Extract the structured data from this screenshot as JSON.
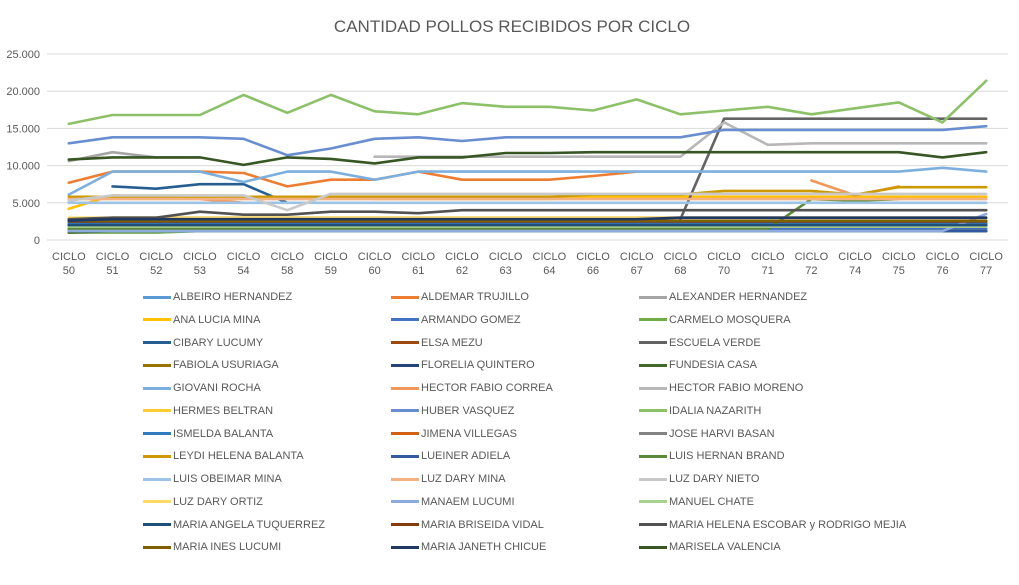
{
  "chart_data": {
    "type": "line",
    "title": "CANTIDAD POLLOS RECIBIDOS POR CICLO",
    "xlabel": "",
    "ylabel": "",
    "ylim": [
      0,
      25000
    ],
    "y_ticks": [
      "0",
      "5.000",
      "10.000",
      "15.000",
      "20.000",
      "25.000"
    ],
    "grid": true,
    "legend_position": "bottom",
    "categories": [
      "CICLO 50",
      "CICLO 51",
      "CICLO 52",
      "CICLO 53",
      "CICLO 54",
      "CICLO 58",
      "CICLO 59",
      "CICLO 60",
      "CICLO 61",
      "CICLO 62",
      "CICLO 63",
      "CICLO 64",
      "CICLO 66",
      "CICLO 67",
      "CICLO 68",
      "CICLO 70",
      "CICLO 71",
      "CICLO 72",
      "CICLO 74",
      "CICLO 75",
      "CICLO 76",
      "CICLO 77"
    ],
    "series": [
      {
        "name": "ALBEIRO HERNANDEZ",
        "color": "#5b9bd5",
        "values": [
          2000,
          2000,
          2000,
          2000,
          2000,
          2000,
          2000,
          2000,
          2000,
          2000,
          2000,
          2000,
          2000,
          2000,
          2000,
          2000,
          2000,
          2000,
          2000,
          2000,
          2000,
          2000
        ]
      },
      {
        "name": "ALDEMAR TRUJILLO",
        "color": "#ed7d31",
        "values": [
          7700,
          9200,
          9200,
          9200,
          9000,
          7200,
          8100,
          8100,
          9200,
          8100,
          8100,
          8100,
          8600,
          9200,
          null,
          null,
          null,
          null,
          null,
          null,
          9200,
          null
        ]
      },
      {
        "name": "ALEXANDER HERNANDEZ",
        "color": "#a5a5a5",
        "values": [
          10600,
          11800,
          11100,
          11100,
          null,
          null,
          null,
          null,
          null,
          null,
          null,
          null,
          null,
          null,
          null,
          null,
          null,
          null,
          null,
          null,
          null,
          null
        ]
      },
      {
        "name": "ANA LUCIA MINA",
        "color": "#ffc000",
        "values": [
          4200,
          6000,
          5800,
          6000,
          5800,
          5800,
          5800,
          5800,
          5800,
          5800,
          5800,
          5800,
          5800,
          5800,
          5800,
          5800,
          5800,
          5800,
          5800,
          5800,
          5800,
          5800
        ]
      },
      {
        "name": "ARMANDO GOMEZ",
        "color": "#4472c4",
        "values": [
          1500,
          1500,
          1500,
          1500,
          1500,
          1500,
          1500,
          1500,
          1500,
          1500,
          1500,
          1500,
          1500,
          1500,
          1500,
          1500,
          1500,
          1500,
          1500,
          1500,
          1500,
          1500
        ]
      },
      {
        "name": "CARMELO MOSQUERA",
        "color": "#70ad47",
        "values": [
          1000,
          1000,
          1000,
          1200,
          1200,
          1200,
          1200,
          1200,
          1200,
          1200,
          1200,
          1200,
          1200,
          1200,
          1200,
          1200,
          1200,
          1200,
          1200,
          1200,
          1200,
          1200
        ]
      },
      {
        "name": "CIBARY LUCUMY",
        "color": "#255e91",
        "values": [
          null,
          7200,
          6900,
          7500,
          7500,
          5000,
          null,
          null,
          null,
          null,
          null,
          null,
          null,
          null,
          null,
          null,
          null,
          null,
          null,
          null,
          null,
          null
        ]
      },
      {
        "name": "ELSA MEZU",
        "color": "#9e480e",
        "values": [
          2500,
          2500,
          2500,
          2500,
          2500,
          2500,
          2500,
          2500,
          2500,
          2500,
          2500,
          2500,
          2500,
          2500,
          2500,
          2500,
          2500,
          2500,
          2500,
          2500,
          2500,
          2500
        ]
      },
      {
        "name": "ESCUELA VERDE",
        "color": "#636363",
        "values": [
          null,
          null,
          null,
          null,
          null,
          null,
          null,
          null,
          null,
          null,
          null,
          null,
          null,
          null,
          2800,
          16300,
          16300,
          16300,
          16300,
          16300,
          16300,
          16300
        ]
      },
      {
        "name": "FABIOLA USURIAGA",
        "color": "#997300",
        "values": [
          2800,
          3000,
          3000,
          3000,
          3000,
          3000,
          3000,
          3000,
          3000,
          3000,
          3000,
          3000,
          3000,
          3000,
          3000,
          3000,
          3000,
          3000,
          3000,
          3000,
          3000,
          3000
        ]
      },
      {
        "name": "FLORELIA QUINTERO",
        "color": "#264478",
        "values": [
          2000,
          2200,
          2200,
          2200,
          2200,
          2200,
          2200,
          2200,
          2200,
          2200,
          2200,
          2200,
          2200,
          2200,
          2200,
          2200,
          2200,
          2200,
          2200,
          2200,
          2200,
          2200
        ]
      },
      {
        "name": "FUNDESIA CASA",
        "color": "#43682b",
        "values": [
          1000,
          1200,
          1200,
          1200,
          1200,
          1200,
          1200,
          1200,
          1200,
          1200,
          1200,
          1200,
          1200,
          1200,
          1200,
          1200,
          1200,
          1200,
          1200,
          1200,
          1200,
          1200
        ]
      },
      {
        "name": "GIOVANI ROCHA",
        "color": "#7cafdd",
        "values": [
          6100,
          9200,
          9200,
          9200,
          7800,
          9200,
          9200,
          8100,
          9200,
          9200,
          9200,
          9200,
          9200,
          9200,
          9200,
          9200,
          9200,
          9200,
          9200,
          9200,
          9700,
          9200
        ]
      },
      {
        "name": "HECTOR FABIO CORREA",
        "color": "#f1975a",
        "values": [
          null,
          null,
          null,
          5500,
          5000,
          null,
          5500,
          null,
          null,
          null,
          null,
          null,
          null,
          null,
          null,
          null,
          null,
          8000,
          6000,
          7200,
          null,
          null
        ]
      },
      {
        "name": "HECTOR FABIO MORENO",
        "color": "#b7b7b7",
        "values": [
          null,
          null,
          null,
          null,
          null,
          null,
          null,
          11200,
          11200,
          11200,
          11200,
          11200,
          11200,
          11200,
          11200,
          15800,
          12800,
          13000,
          13000,
          13000,
          13000,
          13000
        ]
      },
      {
        "name": "HERMES BELTRAN",
        "color": "#ffcd33",
        "values": [
          null,
          null,
          null,
          null,
          null,
          null,
          null,
          5500,
          5500,
          5500,
          5500,
          5500,
          null,
          null,
          null,
          null,
          null,
          null,
          null,
          null,
          null,
          null
        ]
      },
      {
        "name": "HUBER VASQUEZ",
        "color": "#698ed0",
        "values": [
          13000,
          13800,
          13800,
          13800,
          13600,
          11400,
          12300,
          13600,
          13800,
          13300,
          13800,
          13800,
          13800,
          13800,
          13800,
          14800,
          14800,
          14800,
          14800,
          14800,
          14800,
          15300
        ]
      },
      {
        "name": "IDALIA NAZARITH",
        "color": "#8cc168",
        "values": [
          15600,
          16800,
          16800,
          16800,
          19500,
          17100,
          19500,
          17300,
          16900,
          18400,
          17900,
          17900,
          17400,
          18900,
          16900,
          17400,
          17900,
          16900,
          17700,
          18500,
          15800,
          21400
        ]
      },
      {
        "name": "ISMELDA BALANTA",
        "color": "#327dc2",
        "values": [
          2200,
          2200,
          2200,
          2200,
          2200,
          2200,
          2200,
          2200,
          2200,
          2200,
          2200,
          2200,
          2200,
          2200,
          2200,
          2200,
          2200,
          2200,
          2200,
          2200,
          2200,
          2200
        ]
      },
      {
        "name": "JIMENA VILLEGAS",
        "color": "#d26012",
        "values": [
          1800,
          1800,
          1800,
          1800,
          1800,
          1800,
          1800,
          1800,
          1800,
          1800,
          1800,
          1800,
          1800,
          1800,
          1800,
          1800,
          1800,
          1800,
          1800,
          1800,
          1800,
          1800
        ]
      },
      {
        "name": "JOSE HARVI BASAN",
        "color": "#848484",
        "values": [
          null,
          null,
          null,
          null,
          null,
          null,
          null,
          null,
          null,
          null,
          null,
          null,
          null,
          null,
          null,
          null,
          null,
          null,
          null,
          null,
          null,
          null
        ]
      },
      {
        "name": "LEYDI HELENA BALANTA",
        "color": "#cc9a00",
        "values": [
          5800,
          5800,
          5800,
          5800,
          5800,
          5800,
          5800,
          5800,
          5800,
          5800,
          5800,
          5800,
          6100,
          6100,
          6100,
          6600,
          6600,
          6600,
          6100,
          7100,
          7100,
          7100
        ]
      },
      {
        "name": "LUEINER ADIELA",
        "color": "#335aa1",
        "values": [
          1200,
          1200,
          1200,
          1200,
          1200,
          1200,
          1200,
          1200,
          1200,
          1200,
          1200,
          1200,
          1200,
          1200,
          1200,
          1200,
          1200,
          1200,
          1200,
          1200,
          1200,
          1200
        ]
      },
      {
        "name": "LUIS HERNAN BRAND",
        "color": "#5a8a39",
        "values": [
          1500,
          1500,
          1500,
          1500,
          1500,
          1500,
          1500,
          1500,
          1500,
          1500,
          1500,
          1500,
          1500,
          1500,
          1500,
          1500,
          1500,
          5500,
          5300,
          5500,
          null,
          null
        ]
      },
      {
        "name": "LUIS OBEIMAR MINA",
        "color": "#9dc3e6",
        "values": [
          5000,
          5000,
          5000,
          5000,
          5000,
          5000,
          5000,
          5000,
          5000,
          5000,
          5000,
          5000,
          5000,
          5000,
          5000,
          5000,
          5000,
          5000,
          5000,
          5000,
          5000,
          5000
        ]
      },
      {
        "name": "LUZ DARY MINA",
        "color": "#f4b183",
        "values": [
          5500,
          5500,
          5500,
          5500,
          5500,
          5500,
          5500,
          5500,
          5500,
          5500,
          5500,
          5500,
          5500,
          5500,
          5500,
          5500,
          5500,
          5500,
          5500,
          5500,
          5500,
          5500
        ]
      },
      {
        "name": "LUZ DARY NIETO",
        "color": "#c9c9c9",
        "values": [
          5300,
          6000,
          6000,
          6000,
          6000,
          4000,
          6200,
          6200,
          6200,
          6200,
          6200,
          6200,
          6200,
          6200,
          6200,
          6200,
          6200,
          6200,
          6200,
          6200,
          6200,
          6200
        ]
      },
      {
        "name": "LUZ DARY ORTIZ",
        "color": "#ffd966",
        "values": [
          3000,
          3000,
          3000,
          3000,
          3000,
          3000,
          3000,
          3000,
          3000,
          3000,
          3000,
          3000,
          3000,
          3000,
          3000,
          3000,
          3000,
          3000,
          3000,
          3000,
          3000,
          3000
        ]
      },
      {
        "name": "MANAEM LUCUMI",
        "color": "#8faadc",
        "values": [
          1200,
          1200,
          1200,
          1200,
          1200,
          1200,
          1200,
          1200,
          1200,
          1200,
          1200,
          1200,
          1200,
          1200,
          1200,
          1200,
          1200,
          1200,
          1200,
          1200,
          1200,
          3500
        ]
      },
      {
        "name": "MANUEL CHATE",
        "color": "#a9d18e",
        "values": [
          1800,
          1800,
          1800,
          1800,
          1800,
          1800,
          1800,
          1800,
          1800,
          1800,
          1800,
          1800,
          1800,
          1800,
          1800,
          1800,
          1800,
          1800,
          1800,
          1800,
          1800,
          1800
        ]
      },
      {
        "name": "MARIA ANGELA TUQUERREZ",
        "color": "#1f4e79",
        "values": [
          2000,
          2000,
          2000,
          2000,
          2000,
          2000,
          2000,
          2000,
          2000,
          2000,
          2000,
          2000,
          2000,
          2000,
          2000,
          2000,
          2000,
          2000,
          2000,
          2000,
          2000,
          2000
        ]
      },
      {
        "name": "MARIA BRISEIDA VIDAL",
        "color": "#843c0c",
        "values": [
          2500,
          2500,
          2500,
          2500,
          2500,
          2500,
          2500,
          2500,
          2500,
          2500,
          2500,
          2500,
          2500,
          2500,
          2500,
          2500,
          2500,
          2500,
          2500,
          2500,
          2500,
          2500
        ]
      },
      {
        "name": "MARIA HELENA ESCOBAR y RODRIGO MEJIA",
        "color": "#525252",
        "values": [
          2800,
          3000,
          3000,
          3800,
          3400,
          3400,
          3800,
          3800,
          3600,
          4000,
          4000,
          4000,
          4000,
          4000,
          4000,
          4000,
          4000,
          4000,
          4000,
          4000,
          4000,
          4000
        ]
      },
      {
        "name": "MARIA INES LUCUMI",
        "color": "#7f6000",
        "values": [
          2600,
          2600,
          2600,
          2600,
          2600,
          2600,
          2600,
          2600,
          2600,
          2600,
          2600,
          2600,
          2600,
          2600,
          2600,
          2600,
          2600,
          2600,
          2600,
          2600,
          2600,
          2600
        ]
      },
      {
        "name": "MARIA JANETH CHICUE",
        "color": "#203864",
        "values": [
          2600,
          2800,
          2800,
          2800,
          2800,
          2800,
          2800,
          2800,
          2800,
          2800,
          2800,
          2800,
          2800,
          2800,
          3000,
          3000,
          3000,
          3000,
          3000,
          3000,
          3000,
          3000
        ]
      },
      {
        "name": "MARISELA VALENCIA",
        "color": "#375623",
        "values": [
          10800,
          11100,
          11100,
          11100,
          10100,
          11100,
          10900,
          10300,
          11100,
          11100,
          11700,
          11700,
          11800,
          11800,
          11800,
          11800,
          11800,
          11800,
          11800,
          11800,
          11100,
          11800
        ]
      }
    ]
  }
}
